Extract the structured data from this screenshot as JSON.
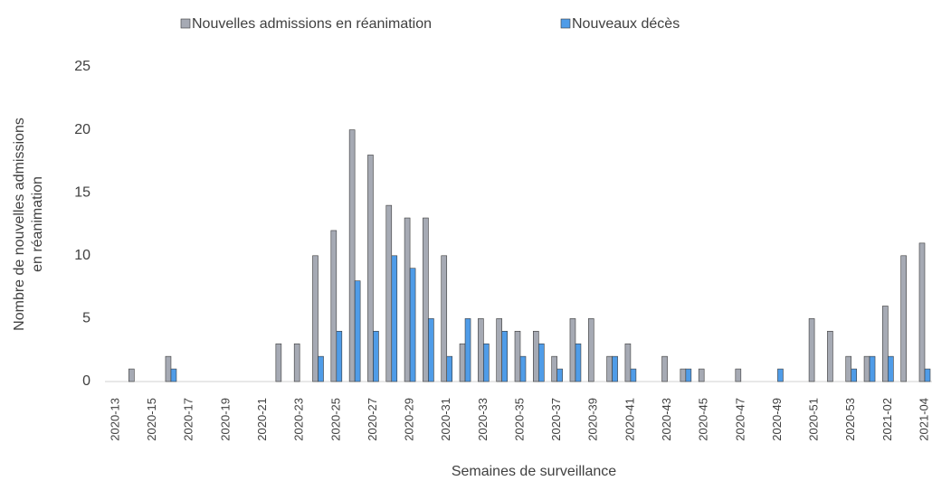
{
  "chart_data": {
    "type": "bar",
    "x_label": "Semaines de surveillance",
    "y_label": [
      "Nombre de nouvelles admissions",
      "en réanimation"
    ],
    "categories": [
      "2020-13",
      null,
      "2020-15",
      null,
      "2020-17",
      null,
      "2020-19",
      null,
      "2020-21",
      null,
      "2020-23",
      null,
      "2020-25",
      null,
      "2020-27",
      null,
      "2020-29",
      null,
      "2020-31",
      null,
      "2020-33",
      null,
      "2020-35",
      null,
      "2020-37",
      null,
      "2020-39",
      null,
      "2020-41",
      null,
      "2020-43",
      null,
      "2020-45",
      null,
      "2020-47",
      null,
      "2020-49",
      null,
      "2020-51",
      null,
      "2020-53",
      null,
      "2021-02",
      null,
      "2021-04"
    ],
    "series": [
      {
        "name": "Nouvelles admissions en réanimation",
        "color": "#a6aab4",
        "values": [
          0,
          1,
          0,
          2,
          0,
          0,
          0,
          0,
          0,
          3,
          3,
          10,
          12,
          20,
          18,
          14,
          13,
          13,
          10,
          3,
          5,
          5,
          4,
          4,
          2,
          5,
          5,
          2,
          3,
          0,
          2,
          1,
          1,
          0,
          1,
          0,
          0,
          0,
          5,
          4,
          2,
          2,
          6,
          10,
          11
        ]
      },
      {
        "name": "Nouveaux décès",
        "color": "#4f9ce8",
        "values": [
          0,
          0,
          0,
          1,
          0,
          0,
          0,
          0,
          0,
          0,
          0,
          2,
          4,
          8,
          4,
          10,
          9,
          5,
          2,
          5,
          3,
          4,
          2,
          3,
          1,
          3,
          0,
          2,
          1,
          0,
          0,
          1,
          0,
          0,
          0,
          0,
          1,
          0,
          0,
          0,
          1,
          2,
          2,
          0,
          1
        ]
      }
    ],
    "ylim": [
      0,
      25
    ],
    "yticks": [
      0,
      5,
      10,
      15,
      20,
      25
    ],
    "grid": false,
    "legend": "top"
  }
}
